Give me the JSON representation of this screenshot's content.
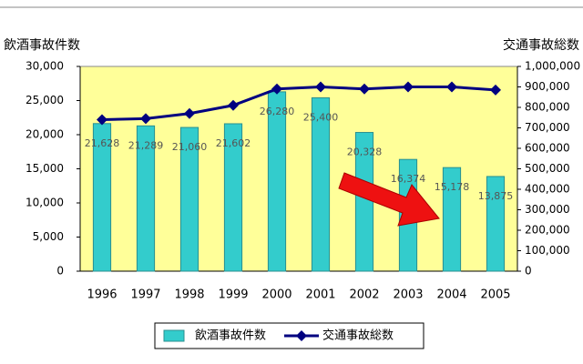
{
  "chart_data": {
    "type": "bar_line",
    "y_label": "飲酒事故件数",
    "y2_label": "交通事故総数",
    "categories": [
      "1996",
      "1997",
      "1998",
      "1999",
      "2000",
      "2001",
      "2002",
      "2003",
      "2004",
      "2005"
    ],
    "series": [
      {
        "name": "飲酒事故件数",
        "type": "bar",
        "color": "#33cccc",
        "values": [
          21628,
          21289,
          21060,
          21602,
          26280,
          25400,
          20328,
          16374,
          15178,
          13875
        ],
        "value_labels": [
          "21,628",
          "21,289",
          "21,060",
          "21,602",
          "26,280",
          "25,400",
          "20,328",
          "16,374",
          "15,178",
          "13,875"
        ]
      },
      {
        "name": "交通事故総数",
        "type": "line",
        "axis": "y2",
        "color": "#000080",
        "values": [
          740000,
          745000,
          770000,
          810000,
          890000,
          900000,
          890000,
          900000,
          900000,
          885000
        ]
      }
    ],
    "ylim": [
      0,
      30000
    ],
    "yticks": [
      0,
      {
        "value": 5000,
        "label": "5,000"
      },
      {
        "value": 10000,
        "label": "10,000"
      },
      {
        "value": 15000,
        "label": "15,000"
      },
      {
        "value": 20000,
        "label": "20,000"
      },
      {
        "value": 25000,
        "label": "25,000"
      },
      {
        "value": 30000,
        "label": "30,000"
      }
    ],
    "y2lim": [
      0,
      1000000
    ],
    "y2ticks": [
      0,
      {
        "value": 100000,
        "label": "100,000"
      },
      {
        "value": 200000,
        "label": "200,000"
      },
      {
        "value": 300000,
        "label": "300,000"
      },
      {
        "value": 400000,
        "label": "400,000"
      },
      {
        "value": 500000,
        "label": "500,000"
      },
      {
        "value": 600000,
        "label": "600,000"
      },
      {
        "value": 700000,
        "label": "700,000"
      },
      {
        "value": 800000,
        "label": "800,000"
      },
      {
        "value": 900000,
        "label": "900,000"
      },
      {
        "value": 1000000,
        "label": "1,000,000"
      }
    ],
    "plot_background": "#ffff99",
    "legend": "bottom"
  }
}
